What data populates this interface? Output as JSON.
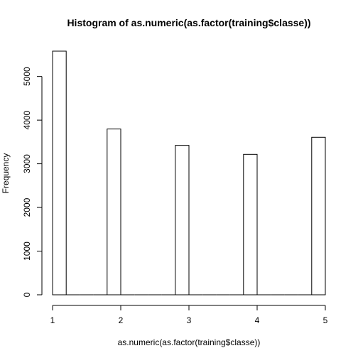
{
  "chart_data": {
    "type": "bar",
    "title": "Histogram of as.numeric(as.factor(training$classe))",
    "xlabel": "as.numeric(as.factor(training$classe))",
    "ylabel": "Frequency",
    "xlim": [
      1,
      5
    ],
    "ylim": [
      0,
      5580
    ],
    "x_ticks": [
      1,
      2,
      3,
      4,
      5
    ],
    "y_ticks": [
      0,
      1000,
      2000,
      3000,
      4000,
      5000
    ],
    "bins": [
      {
        "x0": 1.0,
        "x1": 1.2,
        "value": 5580
      },
      {
        "x0": 1.2,
        "x1": 1.4,
        "value": 0
      },
      {
        "x0": 1.4,
        "x1": 1.6,
        "value": 0
      },
      {
        "x0": 1.6,
        "x1": 1.8,
        "value": 0
      },
      {
        "x0": 1.8,
        "x1": 2.0,
        "value": 3797
      },
      {
        "x0": 2.0,
        "x1": 2.2,
        "value": 0
      },
      {
        "x0": 2.2,
        "x1": 2.4,
        "value": 0
      },
      {
        "x0": 2.4,
        "x1": 2.6,
        "value": 0
      },
      {
        "x0": 2.6,
        "x1": 2.8,
        "value": 0
      },
      {
        "x0": 2.8,
        "x1": 3.0,
        "value": 3422
      },
      {
        "x0": 3.0,
        "x1": 3.2,
        "value": 0
      },
      {
        "x0": 3.2,
        "x1": 3.4,
        "value": 0
      },
      {
        "x0": 3.4,
        "x1": 3.6,
        "value": 0
      },
      {
        "x0": 3.6,
        "x1": 3.8,
        "value": 0
      },
      {
        "x0": 3.8,
        "x1": 4.0,
        "value": 3216
      },
      {
        "x0": 4.0,
        "x1": 4.2,
        "value": 0
      },
      {
        "x0": 4.2,
        "x1": 4.4,
        "value": 0
      },
      {
        "x0": 4.4,
        "x1": 4.6,
        "value": 0
      },
      {
        "x0": 4.6,
        "x1": 4.8,
        "value": 0
      },
      {
        "x0": 4.8,
        "x1": 5.0,
        "value": 3607
      }
    ],
    "grid": false,
    "bar_fill": "#ffffff",
    "bar_stroke": "#000000"
  }
}
